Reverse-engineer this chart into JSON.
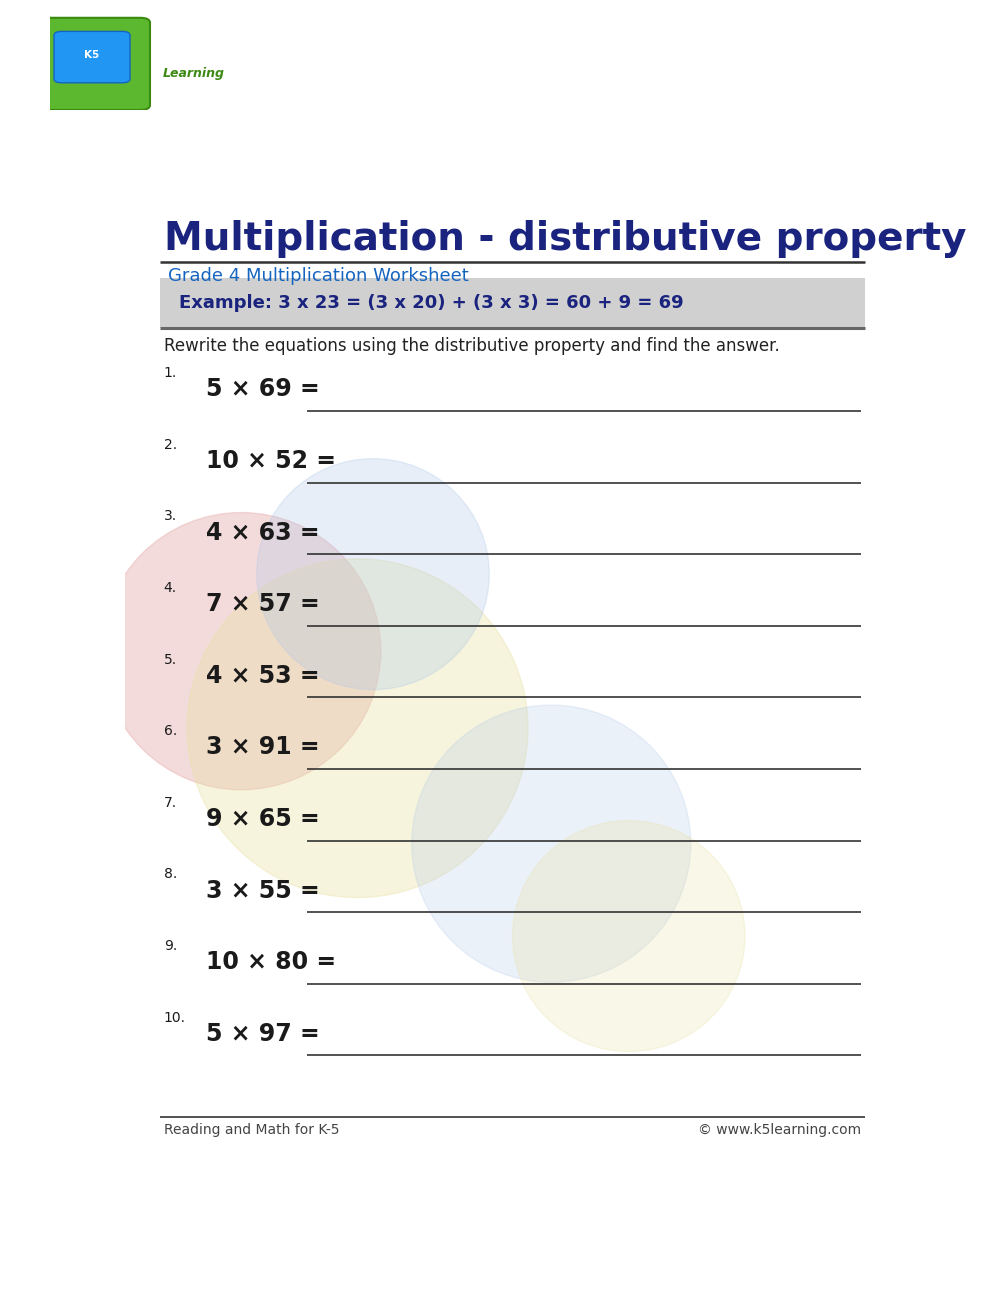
{
  "title": "Multiplication - distributive property",
  "subtitle": "Grade 4 Multiplication Worksheet",
  "example_text": "Example: 3 x 23 = (3 x 20) + (3 x 3) = 60 + 9 = 69",
  "instruction": "Rewrite the equations using the distributive property and find the answer.",
  "problems": [
    {
      "num": "1.",
      "eq": "5 × 69 ="
    },
    {
      "num": "2.",
      "eq": "10 × 52 ="
    },
    {
      "num": "3.",
      "eq": "4 × 63 ="
    },
    {
      "num": "4.",
      "eq": "7 × 57 ="
    },
    {
      "num": "5.",
      "eq": "4 × 53 ="
    },
    {
      "num": "6.",
      "eq": "3 × 91 ="
    },
    {
      "num": "7.",
      "eq": "9 × 65 ="
    },
    {
      "num": "8.",
      "eq": "3 × 55 ="
    },
    {
      "num": "9.",
      "eq": "10 × 80 ="
    },
    {
      "num": "10.",
      "eq": "5 × 97 ="
    }
  ],
  "footer_left": "Reading and Math for K-5",
  "footer_right": "© www.k5learning.com",
  "title_color": "#1a237e",
  "subtitle_color": "#1565c0",
  "example_color": "#1a237e",
  "example_bg": "#d0d0d0",
  "instruction_color": "#222222",
  "problem_color": "#1a1a1a",
  "line_color": "#333333",
  "footer_color": "#444444",
  "bg_color": "#ffffff",
  "watermark_colors": [
    "#e8b0b0",
    "#b0c8e8",
    "#e8e0a0"
  ]
}
